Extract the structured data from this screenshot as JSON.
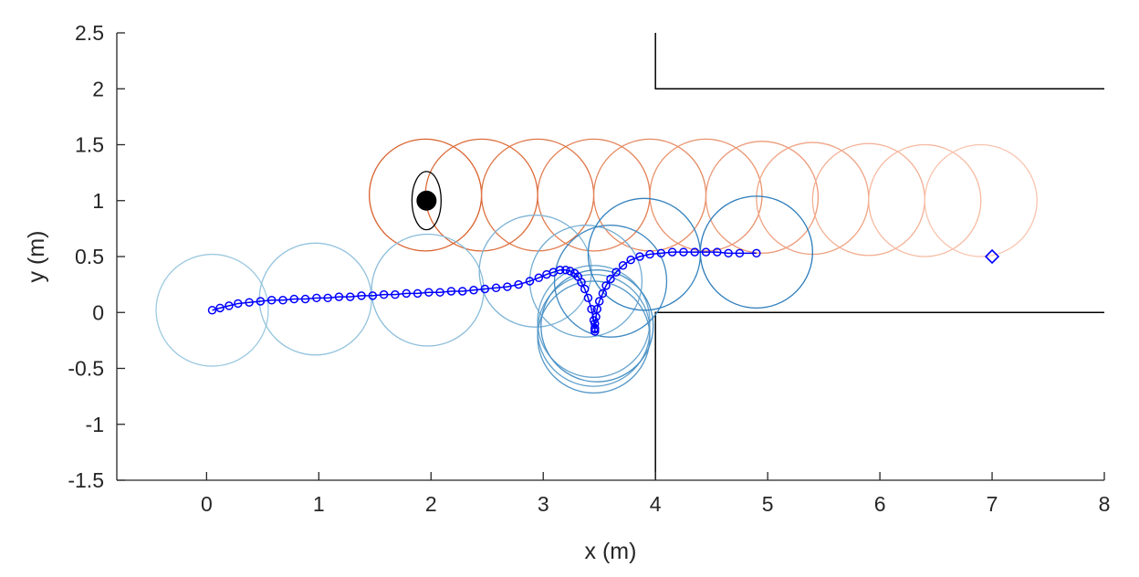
{
  "chart_data": {
    "type": "scatter",
    "title": "",
    "xlabel": "x (m)",
    "ylabel": "y (m)",
    "xlim": [
      -0.8,
      8
    ],
    "ylim": [
      -1.5,
      2.5
    ],
    "x_ticks": [
      0,
      1,
      2,
      3,
      4,
      5,
      6,
      7,
      8
    ],
    "y_ticks": [
      -1.5,
      -1,
      -0.5,
      0,
      0.5,
      1,
      1.5,
      2,
      2.5
    ],
    "x_tick_labels": [
      "0",
      "1",
      "2",
      "3",
      "4",
      "5",
      "6",
      "7",
      "8"
    ],
    "y_tick_labels": [
      "-1.5",
      "-1",
      "-0.5",
      "0",
      "0.5",
      "1",
      "1.5",
      "2",
      "2.5"
    ],
    "grid": false,
    "walls": [
      {
        "x": [
          4,
          4,
          8
        ],
        "y": [
          2.5,
          2.0,
          2.0
        ]
      },
      {
        "x": [
          4,
          4,
          8
        ],
        "y": [
          -1.5,
          0.0,
          0.0
        ]
      }
    ],
    "obstacle": {
      "center": [
        1.96,
        1.0
      ],
      "ellipse_radii": [
        0.13,
        0.26
      ]
    },
    "goal": {
      "x": 7.0,
      "y": 0.5,
      "marker": "diamond"
    },
    "robot_circle_radius": 0.5,
    "robot_positions": [
      {
        "x": 0.05,
        "y": 0.02
      },
      {
        "x": 0.97,
        "y": 0.12
      },
      {
        "x": 1.97,
        "y": 0.2
      },
      {
        "x": 2.93,
        "y": 0.37
      },
      {
        "x": 3.38,
        "y": 0.28
      },
      {
        "x": 3.45,
        "y": -0.08
      },
      {
        "x": 3.45,
        "y": -0.16
      },
      {
        "x": 3.45,
        "y": -0.22
      },
      {
        "x": 3.48,
        "y": -0.12
      },
      {
        "x": 3.6,
        "y": 0.28
      },
      {
        "x": 3.9,
        "y": 0.52
      },
      {
        "x": 4.9,
        "y": 0.54
      }
    ],
    "human_circle_radius": 0.5,
    "human_positions": [
      {
        "x": 1.95,
        "y": 1.05
      },
      {
        "x": 2.45,
        "y": 1.05
      },
      {
        "x": 2.95,
        "y": 1.05
      },
      {
        "x": 3.45,
        "y": 1.05
      },
      {
        "x": 3.95,
        "y": 1.05
      },
      {
        "x": 4.45,
        "y": 1.05
      },
      {
        "x": 4.95,
        "y": 1.03
      },
      {
        "x": 5.4,
        "y": 1.02
      },
      {
        "x": 5.9,
        "y": 1.01
      },
      {
        "x": 6.4,
        "y": 1.0
      },
      {
        "x": 6.9,
        "y": 1.0
      }
    ],
    "trajectory": {
      "x": [
        0.05,
        0.12,
        0.2,
        0.28,
        0.38,
        0.48,
        0.58,
        0.68,
        0.78,
        0.88,
        0.98,
        1.08,
        1.18,
        1.28,
        1.38,
        1.48,
        1.58,
        1.68,
        1.78,
        1.88,
        1.98,
        2.08,
        2.18,
        2.28,
        2.38,
        2.48,
        2.58,
        2.68,
        2.78,
        2.88,
        2.96,
        3.03,
        3.09,
        3.15,
        3.2,
        3.24,
        3.28,
        3.31,
        3.34,
        3.37,
        3.4,
        3.43,
        3.45,
        3.46,
        3.46,
        3.46,
        3.46,
        3.47,
        3.48,
        3.5,
        3.53,
        3.56,
        3.6,
        3.65,
        3.71,
        3.78,
        3.86,
        3.95,
        4.05,
        4.15,
        4.25,
        4.35,
        4.45,
        4.55,
        4.65,
        4.75,
        4.9
      ],
      "y": [
        0.02,
        0.04,
        0.06,
        0.08,
        0.09,
        0.1,
        0.11,
        0.11,
        0.12,
        0.12,
        0.13,
        0.13,
        0.14,
        0.14,
        0.15,
        0.15,
        0.16,
        0.16,
        0.17,
        0.17,
        0.18,
        0.18,
        0.19,
        0.19,
        0.2,
        0.21,
        0.22,
        0.23,
        0.25,
        0.28,
        0.31,
        0.34,
        0.36,
        0.38,
        0.38,
        0.37,
        0.35,
        0.32,
        0.27,
        0.21,
        0.13,
        0.03,
        -0.07,
        -0.14,
        -0.17,
        -0.15,
        -0.1,
        -0.04,
        0.03,
        0.1,
        0.17,
        0.24,
        0.3,
        0.36,
        0.42,
        0.47,
        0.5,
        0.52,
        0.53,
        0.54,
        0.54,
        0.54,
        0.54,
        0.54,
        0.53,
        0.53,
        0.53
      ]
    },
    "colors": {
      "trajectory": "#0000ff",
      "robot_start": "#9ecae1",
      "robot_end": "#2b7bba",
      "human_start": "#d9602b",
      "human_end": "#f9c3ad",
      "wall": "#000000",
      "obstacle": "#000000",
      "axis": "#262626",
      "goal": "#0000ff"
    }
  }
}
